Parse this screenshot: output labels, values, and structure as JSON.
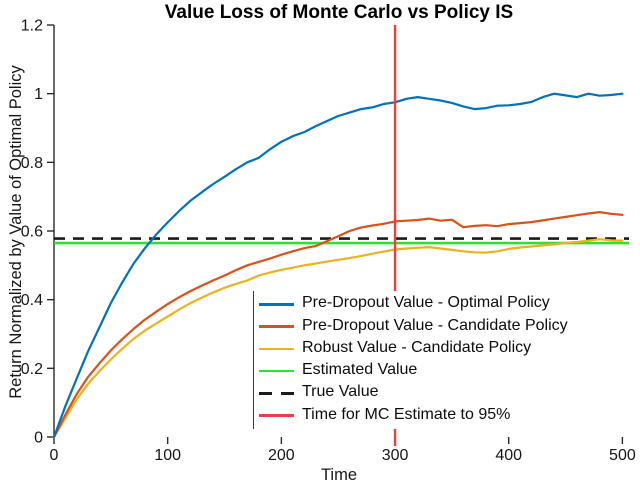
{
  "chart_data": {
    "type": "line",
    "title": "Value Loss of Monte Carlo vs Policy IS",
    "xlabel": "Time",
    "ylabel": "Return Normalized by Value of Optimal Policy",
    "xlim": [
      0,
      500
    ],
    "ylim": [
      0,
      1.2
    ],
    "xticks": [
      0,
      100,
      200,
      300,
      400,
      500
    ],
    "yticks": [
      0,
      0.2,
      0.4,
      0.6,
      0.8,
      1,
      1.2
    ],
    "grid": false,
    "legend_position": "inside lower-right, white background, left edge line only",
    "axis_color": "#2b2b2b",
    "x": [
      0,
      10,
      20,
      30,
      40,
      50,
      60,
      70,
      80,
      90,
      100,
      110,
      120,
      130,
      140,
      150,
      160,
      170,
      180,
      190,
      200,
      210,
      220,
      230,
      240,
      250,
      260,
      270,
      280,
      290,
      300,
      310,
      320,
      330,
      340,
      350,
      360,
      370,
      380,
      390,
      400,
      410,
      420,
      430,
      440,
      450,
      460,
      470,
      480,
      490,
      500
    ],
    "series": [
      {
        "name": "Pre-Dropout Value - Optimal Policy",
        "kind": "xy",
        "color": "#0072bd",
        "style": "solid",
        "y": [
          0.0,
          0.09,
          0.17,
          0.25,
          0.32,
          0.39,
          0.45,
          0.505,
          0.55,
          0.59,
          0.625,
          0.658,
          0.688,
          0.713,
          0.737,
          0.758,
          0.78,
          0.8,
          0.813,
          0.838,
          0.86,
          0.876,
          0.888,
          0.905,
          0.92,
          0.935,
          0.945,
          0.955,
          0.96,
          0.97,
          0.975,
          0.985,
          0.99,
          0.985,
          0.98,
          0.973,
          0.963,
          0.955,
          0.958,
          0.965,
          0.966,
          0.97,
          0.976,
          0.99,
          1.0,
          0.995,
          0.99,
          1.0,
          0.994,
          0.996,
          1.0
        ]
      },
      {
        "name": "Pre-Dropout Value - Candidate Policy",
        "kind": "xy",
        "color": "#d95319",
        "style": "solid",
        "y": [
          0.0,
          0.065,
          0.125,
          0.175,
          0.215,
          0.252,
          0.285,
          0.315,
          0.342,
          0.365,
          0.387,
          0.407,
          0.425,
          0.441,
          0.456,
          0.47,
          0.486,
          0.5,
          0.51,
          0.52,
          0.531,
          0.541,
          0.55,
          0.556,
          0.57,
          0.585,
          0.6,
          0.61,
          0.616,
          0.621,
          0.628,
          0.63,
          0.632,
          0.636,
          0.63,
          0.633,
          0.611,
          0.615,
          0.617,
          0.614,
          0.62,
          0.623,
          0.626,
          0.631,
          0.636,
          0.641,
          0.646,
          0.651,
          0.655,
          0.65,
          0.647
        ]
      },
      {
        "name": "Robust Value - Candidate Policy",
        "kind": "xy",
        "color": "#edb120",
        "style": "solid",
        "y": [
          0.0,
          0.055,
          0.11,
          0.155,
          0.192,
          0.226,
          0.257,
          0.286,
          0.31,
          0.331,
          0.351,
          0.371,
          0.39,
          0.406,
          0.421,
          0.435,
          0.446,
          0.456,
          0.47,
          0.479,
          0.487,
          0.493,
          0.5,
          0.505,
          0.511,
          0.516,
          0.521,
          0.527,
          0.534,
          0.54,
          0.546,
          0.549,
          0.551,
          0.553,
          0.549,
          0.545,
          0.541,
          0.538,
          0.537,
          0.541,
          0.548,
          0.552,
          0.555,
          0.558,
          0.561,
          0.565,
          0.568,
          0.572,
          0.576,
          0.573,
          0.572
        ]
      },
      {
        "name": "Estimated Value",
        "kind": "hline",
        "color": "#2fe12f",
        "style": "solid",
        "value": 0.565
      },
      {
        "name": "True Value",
        "kind": "hline",
        "color": "#1c1c1c",
        "style": "dashed",
        "value": 0.578
      },
      {
        "name": "Time for MC Estimate to 95%",
        "kind": "vline",
        "color": "#f03e3e",
        "style": "solid",
        "value": 300
      }
    ]
  }
}
